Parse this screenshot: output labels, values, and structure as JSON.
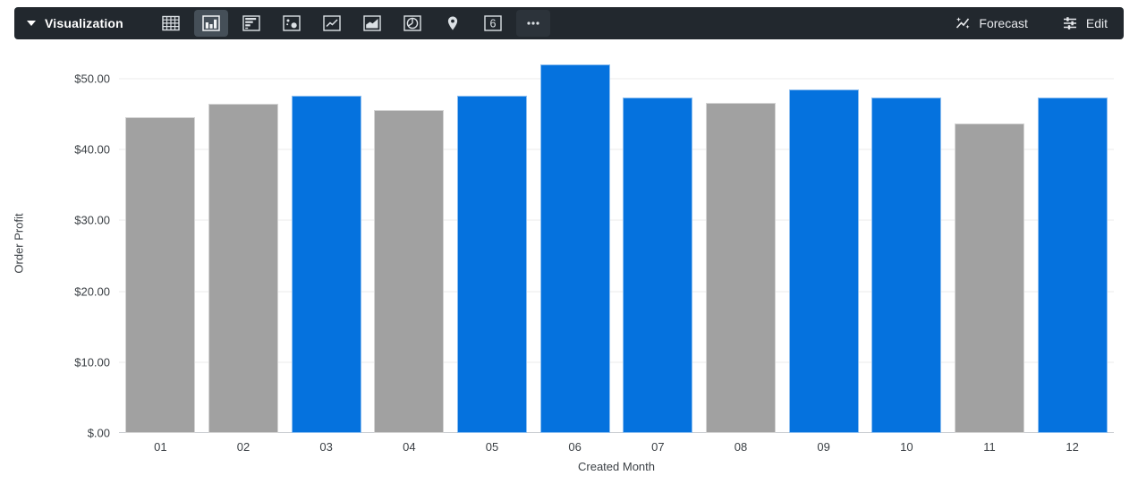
{
  "toolbar": {
    "title": "Visualization",
    "viz_types": [
      {
        "icon": "table-icon",
        "selected": false
      },
      {
        "icon": "column-chart-icon",
        "selected": true
      },
      {
        "icon": "bar-chart-icon",
        "selected": false
      },
      {
        "icon": "scatter-plot-icon",
        "selected": false
      },
      {
        "icon": "line-chart-icon",
        "selected": false
      },
      {
        "icon": "area-chart-icon",
        "selected": false
      },
      {
        "icon": "pie-chart-icon",
        "selected": false
      },
      {
        "icon": "map-pin-icon",
        "selected": false
      },
      {
        "icon": "single-value-icon",
        "selected": false
      },
      {
        "icon": "ellipsis-icon",
        "selected": false
      }
    ],
    "single_value_icon_text": "6",
    "forecast_label": "Forecast",
    "edit_label": "Edit",
    "colors": {
      "background": "#22282e",
      "selected_bg": "#454f58",
      "icon": "#dce1e5",
      "text": "#e8eaed"
    }
  },
  "chart_data": {
    "type": "bar",
    "title": "",
    "xlabel": "Created Month",
    "ylabel": "Order Profit",
    "categories": [
      "01",
      "02",
      "03",
      "04",
      "05",
      "06",
      "07",
      "08",
      "09",
      "10",
      "11",
      "12"
    ],
    "values": [
      44.5,
      46.4,
      47.6,
      45.6,
      47.6,
      52.0,
      47.3,
      46.6,
      48.5,
      47.3,
      43.6,
      47.3
    ],
    "bar_colors": [
      "#a1a1a1",
      "#a1a1a1",
      "#0572de",
      "#a1a1a1",
      "#0572de",
      "#0572de",
      "#0572de",
      "#a1a1a1",
      "#0572de",
      "#0572de",
      "#a1a1a1",
      "#0572de"
    ],
    "ylim": [
      0,
      53.5
    ],
    "y_ticks": [
      {
        "value": 0,
        "label": "$.00"
      },
      {
        "value": 10,
        "label": "$10.00"
      },
      {
        "value": 20,
        "label": "$20.00"
      },
      {
        "value": 30,
        "label": "$30.00"
      },
      {
        "value": 40,
        "label": "$40.00"
      },
      {
        "value": 50,
        "label": "$50.00"
      }
    ],
    "grid": "horizontal",
    "legend": "none",
    "palette": {
      "blue": "#0572de",
      "gray": "#a1a1a1"
    }
  }
}
